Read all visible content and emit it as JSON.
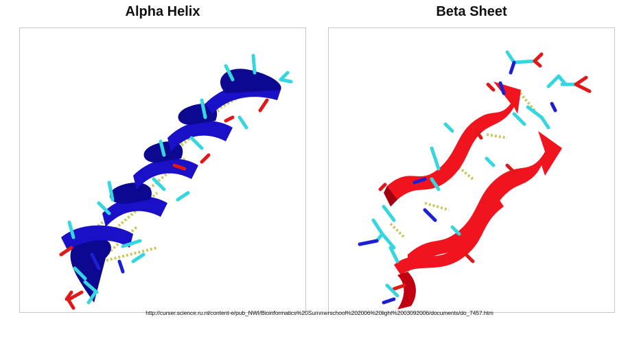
{
  "panels": {
    "left": {
      "title": "Alpha Helix",
      "ribbon_color": "#1a10c8",
      "hbond_color": "#c8c860",
      "atom_colors": {
        "carbon": "#36d6e0",
        "oxygen": "#e01818",
        "nitrogen": "#1e1ed2"
      }
    },
    "right": {
      "title": "Beta Sheet",
      "ribbon_color": "#f0141e",
      "hbond_color": "#c8c860",
      "atom_colors": {
        "carbon": "#36d6e0",
        "oxygen": "#e01818",
        "nitrogen": "#1e1ed2"
      }
    }
  },
  "source_url": "http://curser.science.ru.nl/content-e/pub_NWI/Bioinformatics%20Summerschool%202006%20light%2003092006/documents/do_7457.htm"
}
